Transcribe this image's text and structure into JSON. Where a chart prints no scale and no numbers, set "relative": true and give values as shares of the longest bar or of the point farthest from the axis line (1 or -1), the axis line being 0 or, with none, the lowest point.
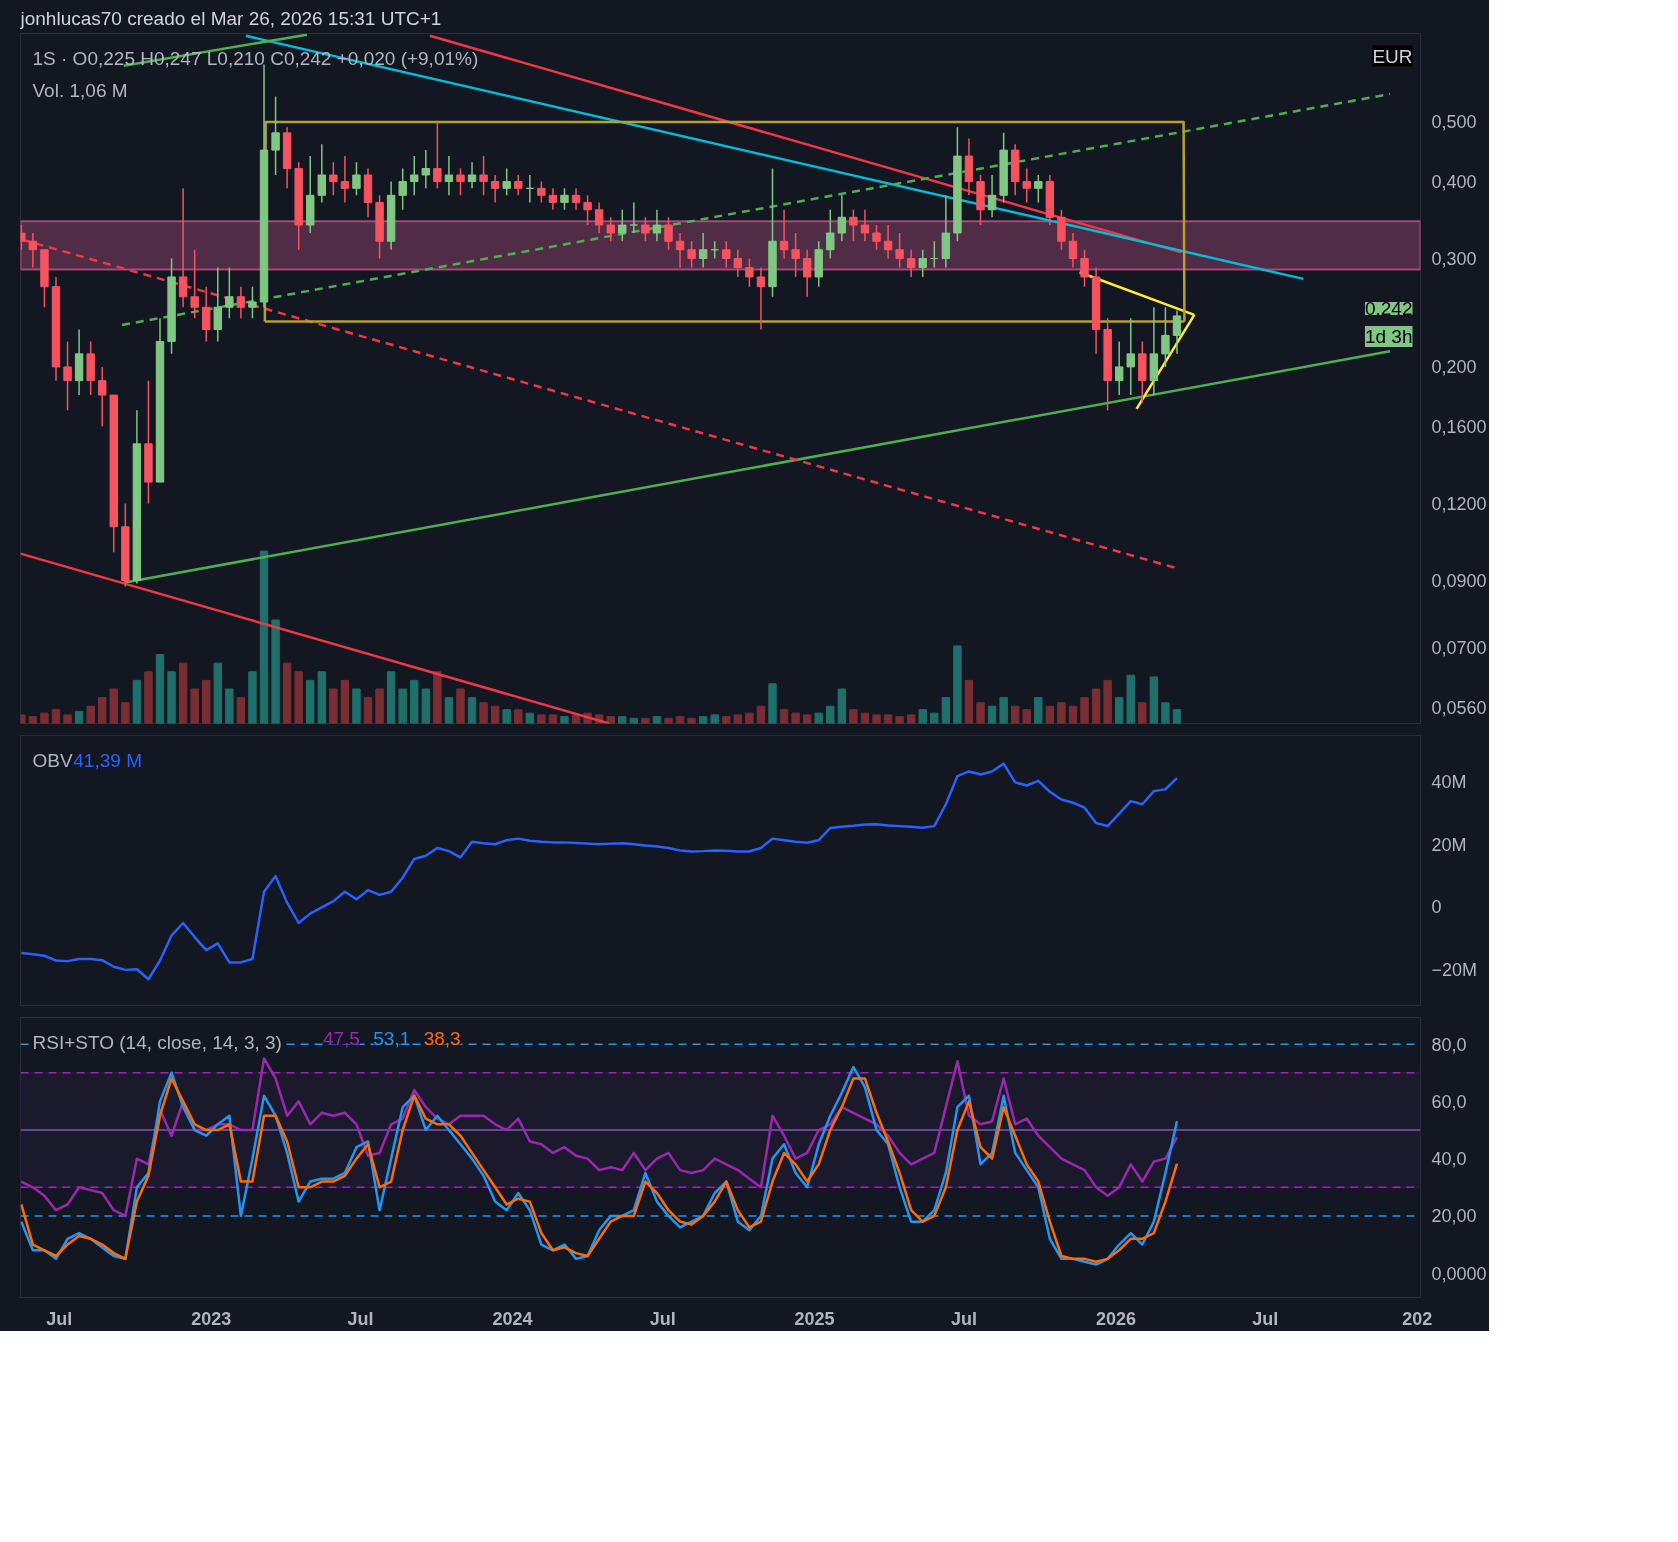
{
  "chart_data": [
    {
      "type": "candlestick",
      "title": "jonhlucas70 creado el Mar 26, 2026 15:31 UTC+1",
      "subtitle": "1S · O0,225 H0,247 L0,210 C0,242 +0,020 (+9,01%)",
      "log": true,
      "grid": false,
      "tick_labels": "y",
      "xlim": [
        "2022-05-15",
        "2027-01-05"
      ],
      "ylim": [
        0.0527,
        0.696
      ],
      "yticks": [
        {
          "value": 0.056,
          "label": "0,0560"
        },
        {
          "value": 0.07,
          "label": "0,0700"
        },
        {
          "value": 0.09,
          "label": "0,0900"
        },
        {
          "value": 0.12,
          "label": "0,1200"
        },
        {
          "value": 0.16,
          "label": "0,1600"
        },
        {
          "value": 0.2,
          "label": "0,200"
        },
        {
          "value": 0.3,
          "label": "0,300"
        },
        {
          "value": 0.4,
          "label": "0,400"
        },
        {
          "value": 0.5,
          "label": "0,500"
        }
      ],
      "annotations": [
        "EUR",
        "0,242",
        "1d 3h"
      ],
      "bands": [
        {
          "axis": "y",
          "from": 0.288,
          "to": 0.345,
          "color": "#c2548a"
        }
      ],
      "x": [
        "2022-05-16",
        "2022-05-30",
        "2022-06-13",
        "2022-06-27",
        "2022-07-11",
        "2022-07-25",
        "2022-08-08",
        "2022-08-22",
        "2022-09-05",
        "2022-09-19",
        "2022-10-03",
        "2022-10-17",
        "2022-10-31",
        "2022-11-14",
        "2022-11-28",
        "2022-12-12",
        "2022-12-26",
        "2023-01-09",
        "2023-01-23",
        "2023-02-06",
        "2023-02-20",
        "2023-03-06",
        "2023-03-20",
        "2023-04-03",
        "2023-04-17",
        "2023-05-01",
        "2023-05-15",
        "2023-05-29",
        "2023-06-12",
        "2023-06-26",
        "2023-07-10",
        "2023-07-24",
        "2023-08-07",
        "2023-08-21",
        "2023-09-04",
        "2023-09-18",
        "2023-10-02",
        "2023-10-16",
        "2023-10-30",
        "2023-11-13",
        "2023-11-27",
        "2023-12-11",
        "2023-12-25",
        "2024-01-08",
        "2024-01-22",
        "2024-02-05",
        "2024-02-19",
        "2024-03-04",
        "2024-03-18",
        "2024-04-01",
        "2024-04-15",
        "2024-04-29",
        "2024-05-13",
        "2024-05-27",
        "2024-06-10",
        "2024-06-24",
        "2024-07-08",
        "2024-07-22",
        "2024-08-05",
        "2024-08-19",
        "2024-09-02",
        "2024-09-16",
        "2024-09-30",
        "2024-10-14",
        "2024-10-28",
        "2024-11-11",
        "2024-11-25",
        "2024-12-09",
        "2024-12-23",
        "2025-01-06",
        "2025-01-20",
        "2025-02-03",
        "2025-02-17",
        "2025-03-03",
        "2025-03-17",
        "2025-03-31",
        "2025-04-14",
        "2025-04-28",
        "2025-05-12",
        "2025-05-26",
        "2025-06-09",
        "2025-06-23",
        "2025-07-07",
        "2025-07-21",
        "2025-08-04",
        "2025-08-18",
        "2025-09-01",
        "2025-09-15",
        "2025-09-29",
        "2025-10-13",
        "2025-10-27",
        "2025-11-10",
        "2025-11-24",
        "2025-12-08",
        "2025-12-22",
        "2026-01-05",
        "2026-01-19",
        "2026-02-02",
        "2026-02-16",
        "2026-03-02",
        "2026-03-16"
      ],
      "ohlc": [
        [
          0.33,
          0.34,
          0.31,
          0.32
        ],
        [
          0.32,
          0.33,
          0.29,
          0.31
        ],
        [
          0.31,
          0.31,
          0.25,
          0.27
        ],
        [
          0.27,
          0.28,
          0.19,
          0.2
        ],
        [
          0.2,
          0.22,
          0.17,
          0.19
        ],
        [
          0.19,
          0.23,
          0.18,
          0.21
        ],
        [
          0.21,
          0.22,
          0.18,
          0.19
        ],
        [
          0.19,
          0.2,
          0.16,
          0.18
        ],
        [
          0.18,
          0.18,
          0.1,
          0.11
        ],
        [
          0.11,
          0.12,
          0.088,
          0.09
        ],
        [
          0.09,
          0.17,
          0.089,
          0.15
        ],
        [
          0.15,
          0.19,
          0.12,
          0.13
        ],
        [
          0.13,
          0.24,
          0.13,
          0.22
        ],
        [
          0.22,
          0.3,
          0.21,
          0.28
        ],
        [
          0.28,
          0.39,
          0.25,
          0.26
        ],
        [
          0.26,
          0.31,
          0.24,
          0.25
        ],
        [
          0.25,
          0.27,
          0.22,
          0.23
        ],
        [
          0.23,
          0.29,
          0.22,
          0.25
        ],
        [
          0.25,
          0.29,
          0.24,
          0.26
        ],
        [
          0.26,
          0.27,
          0.24,
          0.25
        ],
        [
          0.25,
          0.27,
          0.24,
          0.255
        ],
        [
          0.255,
          0.62,
          0.25,
          0.45
        ],
        [
          0.45,
          0.55,
          0.41,
          0.48
        ],
        [
          0.48,
          0.49,
          0.39,
          0.42
        ],
        [
          0.42,
          0.43,
          0.31,
          0.34
        ],
        [
          0.34,
          0.44,
          0.33,
          0.38
        ],
        [
          0.38,
          0.46,
          0.37,
          0.41
        ],
        [
          0.41,
          0.43,
          0.38,
          0.4
        ],
        [
          0.4,
          0.44,
          0.37,
          0.39
        ],
        [
          0.39,
          0.43,
          0.38,
          0.41
        ],
        [
          0.41,
          0.42,
          0.35,
          0.37
        ],
        [
          0.37,
          0.38,
          0.3,
          0.32
        ],
        [
          0.32,
          0.4,
          0.31,
          0.38
        ],
        [
          0.38,
          0.42,
          0.36,
          0.4
        ],
        [
          0.4,
          0.44,
          0.38,
          0.41
        ],
        [
          0.41,
          0.45,
          0.39,
          0.42
        ],
        [
          0.42,
          0.5,
          0.39,
          0.4
        ],
        [
          0.4,
          0.44,
          0.38,
          0.41
        ],
        [
          0.41,
          0.42,
          0.38,
          0.4
        ],
        [
          0.4,
          0.43,
          0.39,
          0.41
        ],
        [
          0.41,
          0.44,
          0.38,
          0.4
        ],
        [
          0.4,
          0.41,
          0.37,
          0.39
        ],
        [
          0.39,
          0.42,
          0.38,
          0.4
        ],
        [
          0.4,
          0.41,
          0.38,
          0.39
        ],
        [
          0.39,
          0.41,
          0.37,
          0.39
        ],
        [
          0.39,
          0.4,
          0.37,
          0.38
        ],
        [
          0.38,
          0.39,
          0.36,
          0.37
        ],
        [
          0.37,
          0.39,
          0.36,
          0.38
        ],
        [
          0.38,
          0.39,
          0.36,
          0.37
        ],
        [
          0.37,
          0.38,
          0.34,
          0.36
        ],
        [
          0.36,
          0.37,
          0.33,
          0.34
        ],
        [
          0.34,
          0.35,
          0.32,
          0.33
        ],
        [
          0.33,
          0.36,
          0.32,
          0.34
        ],
        [
          0.34,
          0.37,
          0.33,
          0.34
        ],
        [
          0.34,
          0.35,
          0.32,
          0.33
        ],
        [
          0.33,
          0.36,
          0.32,
          0.34
        ],
        [
          0.34,
          0.35,
          0.31,
          0.32
        ],
        [
          0.32,
          0.33,
          0.29,
          0.31
        ],
        [
          0.31,
          0.32,
          0.29,
          0.3
        ],
        [
          0.3,
          0.33,
          0.29,
          0.31
        ],
        [
          0.31,
          0.32,
          0.3,
          0.31
        ],
        [
          0.31,
          0.32,
          0.29,
          0.3
        ],
        [
          0.3,
          0.31,
          0.28,
          0.29
        ],
        [
          0.29,
          0.3,
          0.27,
          0.28
        ],
        [
          0.28,
          0.29,
          0.23,
          0.27
        ],
        [
          0.27,
          0.42,
          0.26,
          0.32
        ],
        [
          0.32,
          0.36,
          0.3,
          0.31
        ],
        [
          0.31,
          0.33,
          0.28,
          0.3
        ],
        [
          0.3,
          0.31,
          0.26,
          0.28
        ],
        [
          0.28,
          0.32,
          0.27,
          0.31
        ],
        [
          0.31,
          0.36,
          0.3,
          0.33
        ],
        [
          0.33,
          0.38,
          0.32,
          0.35
        ],
        [
          0.35,
          0.36,
          0.32,
          0.34
        ],
        [
          0.34,
          0.36,
          0.32,
          0.33
        ],
        [
          0.33,
          0.34,
          0.31,
          0.32
        ],
        [
          0.32,
          0.34,
          0.3,
          0.31
        ],
        [
          0.31,
          0.33,
          0.29,
          0.3
        ],
        [
          0.3,
          0.31,
          0.28,
          0.29
        ],
        [
          0.29,
          0.31,
          0.28,
          0.3
        ],
        [
          0.3,
          0.32,
          0.29,
          0.3
        ],
        [
          0.3,
          0.38,
          0.29,
          0.33
        ],
        [
          0.33,
          0.49,
          0.32,
          0.44
        ],
        [
          0.44,
          0.47,
          0.38,
          0.4
        ],
        [
          0.4,
          0.41,
          0.34,
          0.36
        ],
        [
          0.36,
          0.41,
          0.35,
          0.38
        ],
        [
          0.38,
          0.48,
          0.37,
          0.45
        ],
        [
          0.45,
          0.46,
          0.38,
          0.4
        ],
        [
          0.4,
          0.42,
          0.37,
          0.39
        ],
        [
          0.39,
          0.41,
          0.37,
          0.4
        ],
        [
          0.4,
          0.41,
          0.34,
          0.35
        ],
        [
          0.35,
          0.36,
          0.31,
          0.32
        ],
        [
          0.32,
          0.33,
          0.29,
          0.3
        ],
        [
          0.3,
          0.31,
          0.27,
          0.28
        ],
        [
          0.28,
          0.29,
          0.21,
          0.23
        ],
        [
          0.23,
          0.24,
          0.17,
          0.19
        ],
        [
          0.19,
          0.22,
          0.18,
          0.2
        ],
        [
          0.2,
          0.24,
          0.18,
          0.21
        ],
        [
          0.21,
          0.22,
          0.175,
          0.19
        ],
        [
          0.19,
          0.25,
          0.18,
          0.21
        ],
        [
          0.21,
          0.25,
          0.2,
          0.225
        ],
        [
          0.225,
          0.247,
          0.21,
          0.242
        ]
      ],
      "series": [
        {
          "type": "line",
          "x": [
            "2022-09-17",
            "2026-11-29"
          ],
          "values": [
            0.0892,
            0.212
          ],
          "color": "#4caf50",
          "line_style": "solid"
        },
        {
          "type": "line",
          "x": [
            "2022-05-15",
            "2024-04-27"
          ],
          "values": [
            0.0995,
            0.0527
          ],
          "color": "#f23645",
          "line_style": "solid"
        },
        {
          "type": "line",
          "x": [
            "2023-09-23",
            "2026-03-21"
          ],
          "values": [
            0.69,
            0.307
          ],
          "color": "#f23645",
          "line_style": "solid"
        },
        {
          "type": "line",
          "x": [
            "2023-02-12",
            "2026-08-16"
          ],
          "values": [
            0.69,
            0.278
          ],
          "color": "#00bcd4",
          "line_style": "solid"
        },
        {
          "type": "line",
          "x": [
            "2022-09-17",
            "2023-04-27"
          ],
          "values": [
            0.617,
            0.693
          ],
          "color": "#4caf50",
          "line_style": "solid"
        },
        {
          "type": "line",
          "x": [
            "2022-09-15",
            "2026-11-29"
          ],
          "values": [
            0.234,
            0.555
          ],
          "color": "#4caf50",
          "line_style": "dashed"
        },
        {
          "type": "line",
          "x": [
            "2022-05-17",
            "2026-03-18"
          ],
          "values": [
            0.322,
            0.094
          ],
          "color": "#f23645",
          "line_style": "dashed"
        },
        {
          "type": "line",
          "x": [
            "2025-11-18",
            "2026-04-06"
          ],
          "values": [
            0.285,
            0.243
          ],
          "color": "#ffeb3b",
          "line_style": "solid"
        },
        {
          "type": "line",
          "x": [
            "2026-01-26",
            "2026-04-06"
          ],
          "values": [
            0.171,
            0.243
          ],
          "color": "#ffeb3b",
          "line_style": "solid"
        },
        {
          "type": "line",
          "x": [
            "2023-03-07",
            "2023-03-08",
            "2026-03-24",
            "2026-03-25"
          ],
          "values": [
            0.237,
            0.5,
            0.5,
            0.237
          ],
          "color": "#b5a22e",
          "line_style": "solid"
        },
        {
          "type": "line",
          "x": [
            "2023-03-07",
            "2026-03-25"
          ],
          "values": [
            0.237,
            0.237
          ],
          "color": "#b5a22e",
          "line_style": "solid"
        }
      ]
    },
    {
      "type": "bar",
      "relative": true,
      "tick_labels": false,
      "annotations": [
        "Vol. 1,06 M"
      ],
      "xlim": [
        "2022-05-15",
        "2027-01-05"
      ],
      "x": [
        "2022-05-16",
        "2022-05-30",
        "2022-06-13",
        "2022-06-27",
        "2022-07-11",
        "2022-07-25",
        "2022-08-08",
        "2022-08-22",
        "2022-09-05",
        "2022-09-19",
        "2022-10-03",
        "2022-10-17",
        "2022-10-31",
        "2022-11-14",
        "2022-11-28",
        "2022-12-12",
        "2022-12-26",
        "2023-01-09",
        "2023-01-23",
        "2023-02-06",
        "2023-02-20",
        "2023-03-06",
        "2023-03-20",
        "2023-04-03",
        "2023-04-17",
        "2023-05-01",
        "2023-05-15",
        "2023-05-29",
        "2023-06-12",
        "2023-06-26",
        "2023-07-10",
        "2023-07-24",
        "2023-08-07",
        "2023-08-21",
        "2023-09-04",
        "2023-09-18",
        "2023-10-02",
        "2023-10-16",
        "2023-10-30",
        "2023-11-13",
        "2023-11-27",
        "2023-12-11",
        "2023-12-25",
        "2024-01-08",
        "2024-01-22",
        "2024-02-05",
        "2024-02-19",
        "2024-03-04",
        "2024-03-18",
        "2024-04-01",
        "2024-04-15",
        "2024-04-29",
        "2024-05-13",
        "2024-05-27",
        "2024-06-10",
        "2024-06-24",
        "2024-07-08",
        "2024-07-22",
        "2024-08-05",
        "2024-08-19",
        "2024-09-02",
        "2024-09-16",
        "2024-09-30",
        "2024-10-14",
        "2024-10-28",
        "2024-11-11",
        "2024-11-25",
        "2024-12-09",
        "2024-12-23",
        "2025-01-06",
        "2025-01-20",
        "2025-02-03",
        "2025-02-17",
        "2025-03-03",
        "2025-03-17",
        "2025-03-31",
        "2025-04-14",
        "2025-04-28",
        "2025-05-12",
        "2025-05-26",
        "2025-06-09",
        "2025-06-23",
        "2025-07-07",
        "2025-07-21",
        "2025-08-04",
        "2025-08-18",
        "2025-09-01",
        "2025-09-15",
        "2025-09-29",
        "2025-10-13",
        "2025-10-27",
        "2025-11-10",
        "2025-11-24",
        "2025-12-08",
        "2025-12-22",
        "2026-01-05",
        "2026-01-19",
        "2026-02-02",
        "2026-02-16",
        "2026-03-02",
        "2026-03-16"
      ],
      "values": [
        0.05,
        0.04,
        0.06,
        0.08,
        0.05,
        0.07,
        0.1,
        0.15,
        0.2,
        0.12,
        0.25,
        0.3,
        0.4,
        0.3,
        0.35,
        0.2,
        0.25,
        0.35,
        0.2,
        0.15,
        0.3,
        1.0,
        0.6,
        0.35,
        0.3,
        0.25,
        0.3,
        0.2,
        0.25,
        0.2,
        0.15,
        0.2,
        0.3,
        0.2,
        0.25,
        0.2,
        0.3,
        0.15,
        0.2,
        0.15,
        0.12,
        0.1,
        0.08,
        0.08,
        0.06,
        0.05,
        0.05,
        0.04,
        0.05,
        0.06,
        0.05,
        0.04,
        0.04,
        0.03,
        0.03,
        0.04,
        0.03,
        0.04,
        0.03,
        0.04,
        0.05,
        0.04,
        0.05,
        0.06,
        0.1,
        0.23,
        0.08,
        0.06,
        0.05,
        0.06,
        0.1,
        0.2,
        0.08,
        0.06,
        0.05,
        0.05,
        0.04,
        0.05,
        0.08,
        0.06,
        0.15,
        0.45,
        0.25,
        0.12,
        0.1,
        0.15,
        0.1,
        0.08,
        0.15,
        0.1,
        0.12,
        0.1,
        0.15,
        0.2,
        0.25,
        0.15,
        0.28,
        0.12,
        0.27,
        0.12,
        0.08
      ]
    },
    {
      "type": "line",
      "title": "OBV",
      "annotations": [
        "41,39 M"
      ],
      "tick_labels": "y",
      "grid": false,
      "xlim": [
        "2022-05-15",
        "2027-01-05"
      ],
      "ylim": [
        -31.4,
        55
      ],
      "yticks": [
        {
          "value": -20,
          "label": "−20M"
        },
        0,
        {
          "value": 20,
          "label": "20M"
        },
        {
          "value": 40,
          "label": "40M"
        }
      ],
      "x": [
        "2022-05-16",
        "2022-05-30",
        "2022-06-13",
        "2022-06-27",
        "2022-07-11",
        "2022-07-25",
        "2022-08-08",
        "2022-08-22",
        "2022-09-05",
        "2022-09-19",
        "2022-10-03",
        "2022-10-17",
        "2022-10-31",
        "2022-11-14",
        "2022-11-28",
        "2022-12-12",
        "2022-12-26",
        "2023-01-09",
        "2023-01-23",
        "2023-02-06",
        "2023-02-20",
        "2023-03-06",
        "2023-03-20",
        "2023-04-03",
        "2023-04-17",
        "2023-05-01",
        "2023-05-15",
        "2023-05-29",
        "2023-06-12",
        "2023-06-26",
        "2023-07-10",
        "2023-07-24",
        "2023-08-07",
        "2023-08-21",
        "2023-09-04",
        "2023-09-18",
        "2023-10-02",
        "2023-10-16",
        "2023-10-30",
        "2023-11-13",
        "2023-11-27",
        "2023-12-11",
        "2023-12-25",
        "2024-01-08",
        "2024-01-22",
        "2024-02-05",
        "2024-02-19",
        "2024-03-04",
        "2024-03-18",
        "2024-04-01",
        "2024-04-15",
        "2024-04-29",
        "2024-05-13",
        "2024-05-27",
        "2024-06-10",
        "2024-06-24",
        "2024-07-08",
        "2024-07-22",
        "2024-08-05",
        "2024-08-19",
        "2024-09-02",
        "2024-09-16",
        "2024-09-30",
        "2024-10-14",
        "2024-10-28",
        "2024-11-11",
        "2024-11-25",
        "2024-12-09",
        "2024-12-23",
        "2025-01-06",
        "2025-01-20",
        "2025-02-03",
        "2025-02-17",
        "2025-03-03",
        "2025-03-17",
        "2025-03-31",
        "2025-04-14",
        "2025-04-28",
        "2025-05-12",
        "2025-05-26",
        "2025-06-09",
        "2025-06-23",
        "2025-07-07",
        "2025-07-21",
        "2025-08-04",
        "2025-08-18",
        "2025-09-01",
        "2025-09-15",
        "2025-09-29",
        "2025-10-13",
        "2025-10-27",
        "2025-11-10",
        "2025-11-24",
        "2025-12-08",
        "2025-12-22",
        "2026-01-05",
        "2026-01-19",
        "2026-02-02",
        "2026-02-16",
        "2026-03-02",
        "2026-03-16"
      ],
      "series": [
        {
          "color": "#2962ff",
          "values": [
            -14.6,
            -15,
            -15.5,
            -17,
            -17.2,
            -16.5,
            -16.5,
            -16.9,
            -19,
            -20,
            -19.8,
            -23,
            -17,
            -9,
            -5,
            -9.5,
            -13.7,
            -11.5,
            -17.6,
            -17.6,
            -16.5,
            5,
            10,
            1.5,
            -5,
            -2,
            0,
            2,
            5,
            2.6,
            5.5,
            4,
            5,
            9.5,
            15.5,
            16.5,
            19,
            18,
            16,
            21,
            20.5,
            20.2,
            21.5,
            22,
            21.3,
            21,
            20.8,
            20.8,
            20.6,
            20.4,
            20.2,
            20.4,
            20.5,
            20.2,
            19.8,
            19.5,
            19,
            18.2,
            17.9,
            18,
            18.2,
            18.1,
            17.9,
            17.9,
            19,
            22,
            21.5,
            21,
            20.7,
            21.5,
            25.4,
            25.8,
            26.1,
            26.5,
            26.6,
            26.2,
            26,
            25.8,
            25.5,
            26,
            33,
            42,
            43.5,
            42.5,
            43.5,
            46,
            40,
            39,
            40.5,
            37,
            34.5,
            33.5,
            31.9,
            27,
            26,
            30,
            34,
            33,
            37.2,
            37.8,
            41.39
          ]
        }
      ]
    },
    {
      "type": "line",
      "title": "RSI+STO (14, close, 14, 3, 3)",
      "annotations": [
        "47,5",
        "53,1",
        "38,3"
      ],
      "grid": false,
      "xlim": [
        "2022-05-15",
        "2027-01-05"
      ],
      "ylim": [
        -8.5,
        89.3
      ],
      "yticks": [
        {
          "value": 0,
          "label": "0,0000"
        },
        {
          "value": 20,
          "label": "20,00"
        },
        {
          "value": 40,
          "label": "40,0"
        },
        {
          "value": 60,
          "label": "60,0"
        },
        {
          "value": 80,
          "label": "80,0"
        }
      ],
      "xticks": [
        {
          "value": "2022-07-01",
          "label": "Jul"
        },
        {
          "value": "2023-01-01",
          "label": "2023"
        },
        {
          "value": "2023-07-01",
          "label": "Jul"
        },
        {
          "value": "2024-01-01",
          "label": "2024"
        },
        {
          "value": "2024-07-01",
          "label": "Jul"
        },
        {
          "value": "2025-01-01",
          "label": "2025"
        },
        {
          "value": "2025-07-01",
          "label": "Jul"
        },
        {
          "value": "2026-01-01",
          "label": "2026"
        },
        {
          "value": "2026-07-01",
          "label": "Jul"
        },
        {
          "value": "2027-01-01",
          "label": "202"
        }
      ],
      "ref_lines": [
        {
          "axis": "y",
          "value": 80,
          "color": "#2196f3",
          "line_style": "dashed"
        },
        {
          "axis": "y",
          "value": 20,
          "color": "#2196f3",
          "line_style": "dashed"
        },
        {
          "axis": "y",
          "value": 70,
          "color": "#9c27b0",
          "line_style": "dashed"
        },
        {
          "axis": "y",
          "value": 30,
          "color": "#9c27b0",
          "line_style": "dashed"
        },
        {
          "axis": "y",
          "value": 50,
          "color": "#7e57c2",
          "line_style": "solid"
        }
      ],
      "bands": [
        {
          "axis": "y",
          "from": 30,
          "to": 70,
          "color": "#2a1d40"
        }
      ],
      "x": [
        "2022-05-16",
        "2022-05-30",
        "2022-06-13",
        "2022-06-27",
        "2022-07-11",
        "2022-07-25",
        "2022-08-08",
        "2022-08-22",
        "2022-09-05",
        "2022-09-19",
        "2022-10-03",
        "2022-10-17",
        "2022-10-31",
        "2022-11-14",
        "2022-11-28",
        "2022-12-12",
        "2022-12-26",
        "2023-01-09",
        "2023-01-23",
        "2023-02-06",
        "2023-02-20",
        "2023-03-06",
        "2023-03-20",
        "2023-04-03",
        "2023-04-17",
        "2023-05-01",
        "2023-05-15",
        "2023-05-29",
        "2023-06-12",
        "2023-06-26",
        "2023-07-10",
        "2023-07-24",
        "2023-08-07",
        "2023-08-21",
        "2023-09-04",
        "2023-09-18",
        "2023-10-02",
        "2023-10-16",
        "2023-10-30",
        "2023-11-13",
        "2023-11-27",
        "2023-12-11",
        "2023-12-25",
        "2024-01-08",
        "2024-01-22",
        "2024-02-05",
        "2024-02-19",
        "2024-03-04",
        "2024-03-18",
        "2024-04-01",
        "2024-04-15",
        "2024-04-29",
        "2024-05-13",
        "2024-05-27",
        "2024-06-10",
        "2024-06-24",
        "2024-07-08",
        "2024-07-22",
        "2024-08-05",
        "2024-08-19",
        "2024-09-02",
        "2024-09-16",
        "2024-09-30",
        "2024-10-14",
        "2024-10-28",
        "2024-11-11",
        "2024-11-25",
        "2024-12-09",
        "2024-12-23",
        "2025-01-06",
        "2025-01-20",
        "2025-02-03",
        "2025-02-17",
        "2025-03-03",
        "2025-03-17",
        "2025-03-31",
        "2025-04-14",
        "2025-04-28",
        "2025-05-12",
        "2025-05-26",
        "2025-06-09",
        "2025-06-23",
        "2025-07-07",
        "2025-07-21",
        "2025-08-04",
        "2025-08-18",
        "2025-09-01",
        "2025-09-15",
        "2025-09-29",
        "2025-10-13",
        "2025-10-27",
        "2025-11-10",
        "2025-11-24",
        "2025-12-08",
        "2025-12-22",
        "2026-01-05",
        "2026-01-19",
        "2026-02-02",
        "2026-02-16",
        "2026-03-02",
        "2026-03-16"
      ],
      "series": [
        {
          "color": "#9c27b0",
          "values": [
            32,
            30,
            27,
            22,
            24,
            30,
            29,
            28,
            22,
            20,
            40,
            38,
            57,
            48,
            60,
            50,
            50,
            52,
            52,
            50,
            50,
            75,
            68,
            55,
            60,
            52,
            56,
            55,
            56,
            52,
            41,
            42,
            52,
            54,
            64,
            58,
            54,
            52,
            55,
            55,
            55,
            52,
            50,
            54,
            46,
            45,
            42,
            44,
            41,
            40,
            36,
            37,
            36,
            42,
            36,
            40,
            42,
            36,
            35,
            36,
            40,
            38,
            36,
            33,
            30,
            55,
            48,
            40,
            42,
            50,
            52,
            58,
            56,
            54,
            52,
            48,
            42,
            38,
            40,
            42,
            58,
            74,
            55,
            52,
            53,
            68,
            52,
            54,
            48,
            44,
            40,
            38,
            36,
            30,
            27,
            30,
            38,
            32,
            39,
            40,
            47.5
          ]
        },
        {
          "color": "#2196f3",
          "values": [
            18,
            8,
            8,
            5,
            12,
            14,
            12,
            9,
            6,
            5,
            30,
            35,
            60,
            70,
            58,
            50,
            48,
            52,
            55,
            20,
            40,
            62,
            55,
            42,
            25,
            32,
            33,
            33,
            35,
            44,
            46,
            22,
            40,
            58,
            62,
            50,
            55,
            50,
            45,
            40,
            34,
            25,
            22,
            28,
            22,
            10,
            8,
            10,
            5,
            6,
            15,
            20,
            20,
            22,
            35,
            25,
            20,
            16,
            18,
            20,
            28,
            32,
            18,
            15,
            20,
            40,
            45,
            35,
            30,
            45,
            55,
            63,
            72,
            65,
            50,
            45,
            30,
            18,
            18,
            22,
            35,
            58,
            62,
            38,
            42,
            62,
            42,
            36,
            30,
            12,
            5,
            5,
            4,
            3,
            5,
            10,
            14,
            10,
            18,
            35,
            53.1
          ]
        },
        {
          "color": "#ff6d00",
          "values": [
            24,
            10,
            8,
            6,
            10,
            13,
            12,
            10,
            7,
            5,
            25,
            34,
            55,
            68,
            60,
            52,
            50,
            50,
            52,
            32,
            32,
            55,
            55,
            46,
            30,
            30,
            32,
            32,
            34,
            40,
            45,
            30,
            32,
            50,
            62,
            54,
            52,
            52,
            48,
            42,
            36,
            30,
            24,
            26,
            25,
            14,
            8,
            9,
            7,
            6,
            12,
            18,
            20,
            20,
            32,
            28,
            22,
            18,
            17,
            20,
            25,
            32,
            22,
            16,
            18,
            32,
            42,
            38,
            32,
            38,
            50,
            58,
            68,
            68,
            56,
            46,
            35,
            22,
            18,
            20,
            30,
            50,
            60,
            44,
            40,
            58,
            48,
            38,
            32,
            18,
            6,
            5,
            5,
            4,
            5,
            8,
            12,
            12,
            14,
            25,
            38.3
          ]
        }
      ]
    }
  ]
}
